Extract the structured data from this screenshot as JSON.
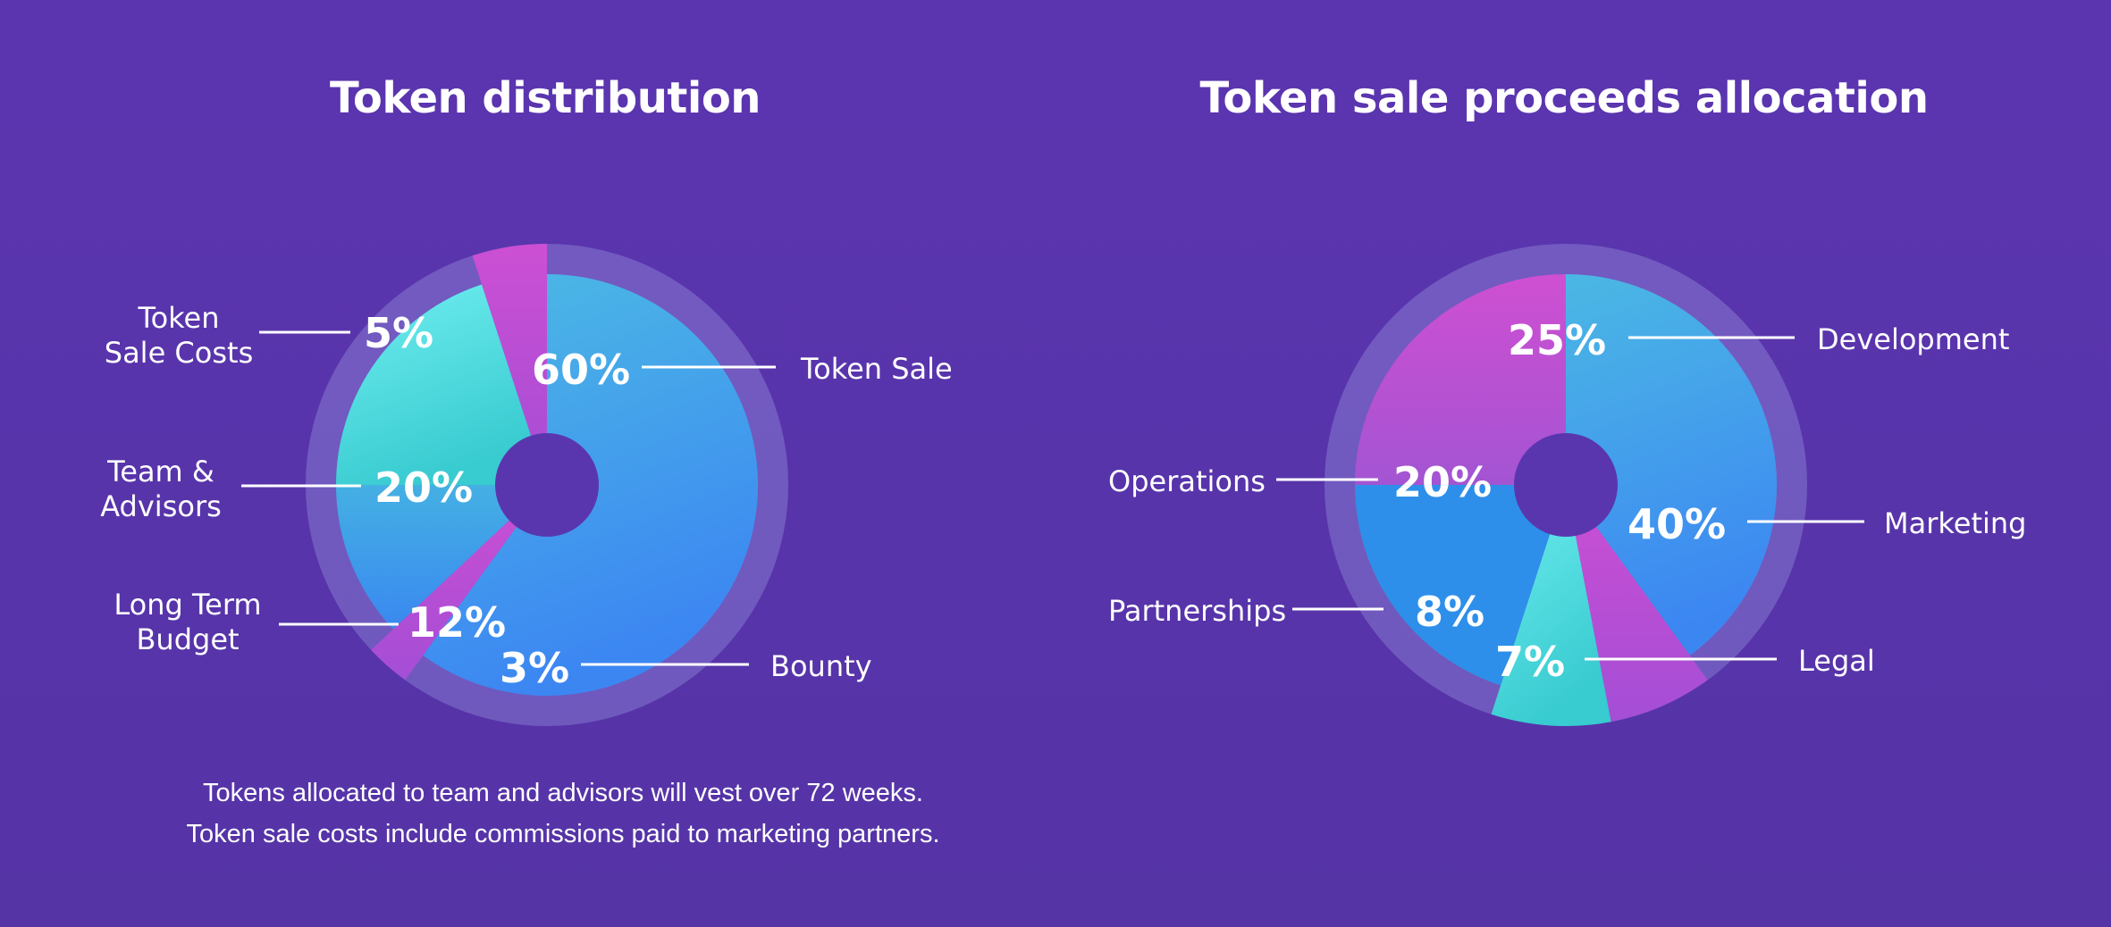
{
  "colors": {
    "background": "#5a35ad",
    "cyan_top": "#4fb6e6",
    "blue": "#3d8ff0",
    "teal_light": "#6ceaee",
    "teal": "#3fd0d4",
    "magenta": "#c94bd0",
    "ring": "#8a84d8"
  },
  "chart_data": [
    {
      "type": "pie",
      "title": "Token distribution",
      "slices": [
        {
          "label": "Token Sale",
          "value": 60,
          "display": "60%",
          "color": "#47a7ea"
        },
        {
          "label": "Bounty",
          "value": 3,
          "display": "3%",
          "color": "#b64ed4"
        },
        {
          "label": "Long Term Budget",
          "value": 12,
          "display": "12%",
          "color": "#3f97ea"
        },
        {
          "label": "Team & Advisors",
          "value": 20,
          "display": "20%",
          "color": "#4fd9df"
        },
        {
          "label": "Token Sale Costs",
          "value": 5,
          "display": "5%",
          "color": "#b84dd2"
        }
      ]
    },
    {
      "type": "pie",
      "title": "Token sale proceeds allocation",
      "slices": [
        {
          "label": "Marketing",
          "value": 40,
          "display": "40%",
          "color": "#449fea"
        },
        {
          "label": "Legal",
          "value": 7,
          "display": "7%",
          "color": "#b44ed4"
        },
        {
          "label": "Partnerships",
          "value": 8,
          "display": "8%",
          "color": "#52dde0"
        },
        {
          "label": "Operations",
          "value": 20,
          "display": "20%",
          "color": "#2e8fea"
        },
        {
          "label": "Development",
          "value": 25,
          "display": "25%",
          "color": "#c14fd0"
        }
      ]
    }
  ],
  "labels": {
    "left": {
      "token_sale": "Token Sale",
      "bounty": "Bounty",
      "long_term_1": "Long Term",
      "long_term_2": "Budget",
      "team_1": "Team &",
      "team_2": "Advisors",
      "costs_1": "Token",
      "costs_2": "Sale Costs"
    },
    "right": {
      "development": "Development",
      "marketing": "Marketing",
      "legal": "Legal",
      "partnerships": "Partnerships",
      "operations": "Operations"
    }
  },
  "footnotes": [
    "Tokens allocated to team and advisors will vest over 72 weeks.",
    "Token sale costs include commissions paid to marketing partners."
  ]
}
